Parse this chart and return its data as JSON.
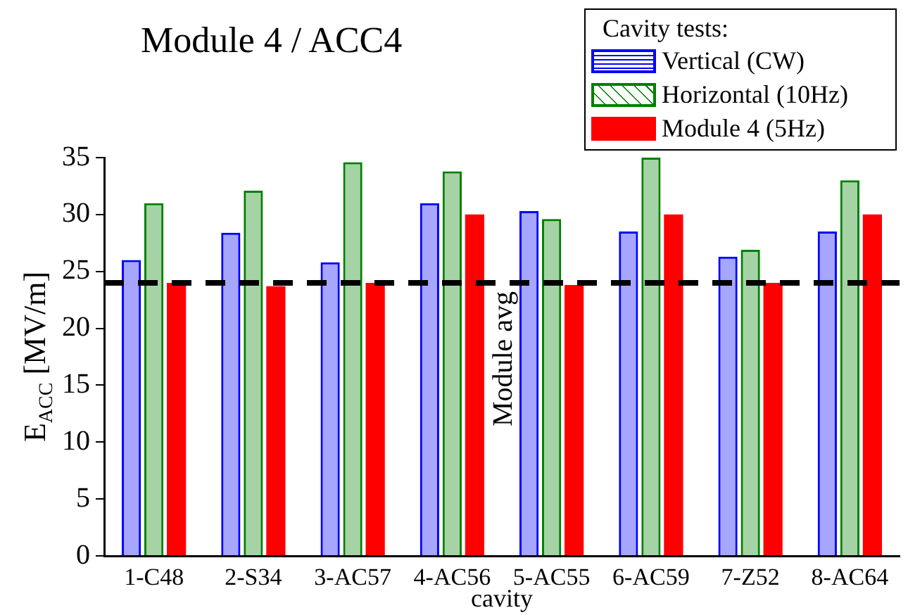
{
  "chart_data": {
    "type": "bar",
    "title": "Module 4 / ACC4",
    "xlabel": "cavity",
    "ylabel": "E$_{ACC}$ [MV/m]",
    "legend_title": "Cavity tests:",
    "legend": "top right",
    "grid": false,
    "categories": [
      "1-C48",
      "2-S34",
      "3-AC57",
      "4-AC56",
      "5-AC55",
      "6-AC59",
      "7-Z52",
      "8-AC64"
    ],
    "series": [
      {
        "name": "Vertical (CW)",
        "color": "#0000ff",
        "values": [
          26,
          28.4,
          25.8,
          31,
          30.3,
          28.5,
          26.3,
          28.5
        ]
      },
      {
        "name": "Horizontal (10Hz)",
        "color": "#008000",
        "values": [
          31,
          32.1,
          34.6,
          33.8,
          29.6,
          35,
          26.9,
          33
        ]
      },
      {
        "name": "Module 4 (5Hz)",
        "color": "#ff0000",
        "values": [
          24,
          23.7,
          24,
          30,
          23.8,
          30,
          24,
          30
        ]
      }
    ],
    "ylim": [
      0,
      35
    ],
    "yticks": [
      0,
      5,
      10,
      15,
      20,
      25,
      30,
      35
    ],
    "ref_lines": [
      {
        "axis": "y",
        "value": 24,
        "label": "Module avg",
        "color": "#000000",
        "line_style": "dashed"
      }
    ]
  }
}
